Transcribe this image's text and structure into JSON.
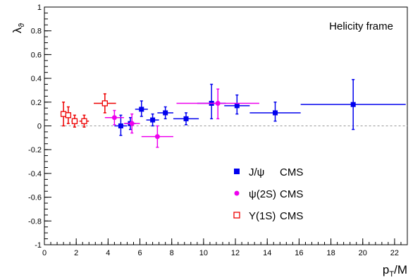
{
  "chart_data": {
    "type": "scatter",
    "annotation": "Helicity frame",
    "xlabel": "p_T/M",
    "xlabel_main": "p",
    "xlabel_sub": "T",
    "xlabel_tail": "/M",
    "ylabel": "λ_ϑ",
    "ylabel_main": "λ",
    "ylabel_sub": "ϑ",
    "xlim": [
      0,
      22.8
    ],
    "ylim": [
      -1,
      1
    ],
    "x_ticks": [
      0,
      2,
      4,
      6,
      8,
      10,
      12,
      14,
      16,
      18,
      20,
      22
    ],
    "x_tick_labels": [
      "0",
      "2",
      "4",
      "6",
      "8",
      "10",
      "12",
      "14",
      "16",
      "18",
      "20",
      "22"
    ],
    "y_ticks": [
      -1,
      -0.8,
      -0.6,
      -0.4,
      -0.2,
      0,
      0.2,
      0.4,
      0.6,
      0.8,
      1
    ],
    "y_tick_labels": [
      "-1",
      "-0.8",
      "-0.6",
      "-0.4",
      "-0.2",
      "0",
      "0.2",
      "0.4",
      "0.6",
      "0.8",
      "1"
    ],
    "grid": false,
    "reference_line": {
      "y": 0,
      "style": "dashed"
    },
    "legend_position": "lower-right",
    "series": [
      {
        "name": "J/ψ  CMS",
        "legend_main": "J/ψ",
        "legend_tag": "CMS",
        "color": "#0000ee",
        "marker": "filled-square",
        "points": [
          {
            "x": 4.8,
            "y": 0.0,
            "xerr": [
              0.4,
              0.4
            ],
            "yerr": [
              0.08,
              0.09
            ]
          },
          {
            "x": 5.4,
            "y": 0.02,
            "xerr": [
              0.35,
              0.35
            ],
            "yerr": [
              0.05,
              0.05
            ]
          },
          {
            "x": 6.1,
            "y": 0.14,
            "xerr": [
              0.4,
              0.4
            ],
            "yerr": [
              0.06,
              0.07
            ]
          },
          {
            "x": 6.8,
            "y": 0.05,
            "xerr": [
              0.4,
              0.4
            ],
            "yerr": [
              0.05,
              0.05
            ]
          },
          {
            "x": 7.6,
            "y": 0.11,
            "xerr": [
              0.5,
              0.5
            ],
            "yerr": [
              0.05,
              0.05
            ]
          },
          {
            "x": 8.9,
            "y": 0.06,
            "xerr": [
              0.8,
              0.8
            ],
            "yerr": [
              0.05,
              0.05
            ]
          },
          {
            "x": 10.5,
            "y": 0.19,
            "xerr": [
              0.9,
              0.9
            ],
            "yerr": [
              0.13,
              0.16
            ]
          },
          {
            "x": 12.1,
            "y": 0.17,
            "xerr": [
              0.8,
              0.8
            ],
            "yerr": [
              0.07,
              0.09
            ]
          },
          {
            "x": 14.5,
            "y": 0.11,
            "xerr": [
              1.6,
              1.6
            ],
            "yerr": [
              0.07,
              0.09
            ]
          },
          {
            "x": 19.4,
            "y": 0.18,
            "xerr": [
              3.3,
              3.3
            ],
            "yerr": [
              0.21,
              0.21
            ]
          }
        ]
      },
      {
        "name": "ψ(2S)  CMS",
        "legend_main": "ψ(2S)",
        "legend_tag": "CMS",
        "color": "#ee00ee",
        "marker": "filled-circle",
        "points": [
          {
            "x": 4.4,
            "y": 0.07,
            "xerr": [
              0.6,
              0.6
            ],
            "yerr": [
              0.06,
              0.06
            ]
          },
          {
            "x": 5.5,
            "y": 0.02,
            "xerr": [
              0.5,
              0.5
            ],
            "yerr": [
              0.08,
              0.08
            ]
          },
          {
            "x": 7.1,
            "y": -0.09,
            "xerr": [
              1.0,
              1.0
            ],
            "yerr": [
              0.09,
              0.09
            ]
          },
          {
            "x": 10.9,
            "y": 0.19,
            "xerr": [
              2.6,
              2.6
            ],
            "yerr": [
              0.13,
              0.12
            ]
          }
        ]
      },
      {
        "name": "Υ(1S)  CMS",
        "legend_main": "Υ(1S)",
        "legend_tag": "CMS",
        "color": "#ee0000",
        "marker": "open-square",
        "points": [
          {
            "x": 1.2,
            "y": 0.1,
            "xerr": [
              0.15,
              0.15
            ],
            "yerr": [
              0.1,
              0.1
            ]
          },
          {
            "x": 1.5,
            "y": 0.09,
            "xerr": [
              0.15,
              0.15
            ],
            "yerr": [
              0.07,
              0.07
            ]
          },
          {
            "x": 1.9,
            "y": 0.04,
            "xerr": [
              0.2,
              0.2
            ],
            "yerr": [
              0.05,
              0.05
            ]
          },
          {
            "x": 2.5,
            "y": 0.04,
            "xerr": [
              0.3,
              0.3
            ],
            "yerr": [
              0.05,
              0.05
            ]
          },
          {
            "x": 3.8,
            "y": 0.19,
            "xerr": [
              0.7,
              0.7
            ],
            "yerr": [
              0.08,
              0.08
            ]
          }
        ]
      }
    ]
  }
}
